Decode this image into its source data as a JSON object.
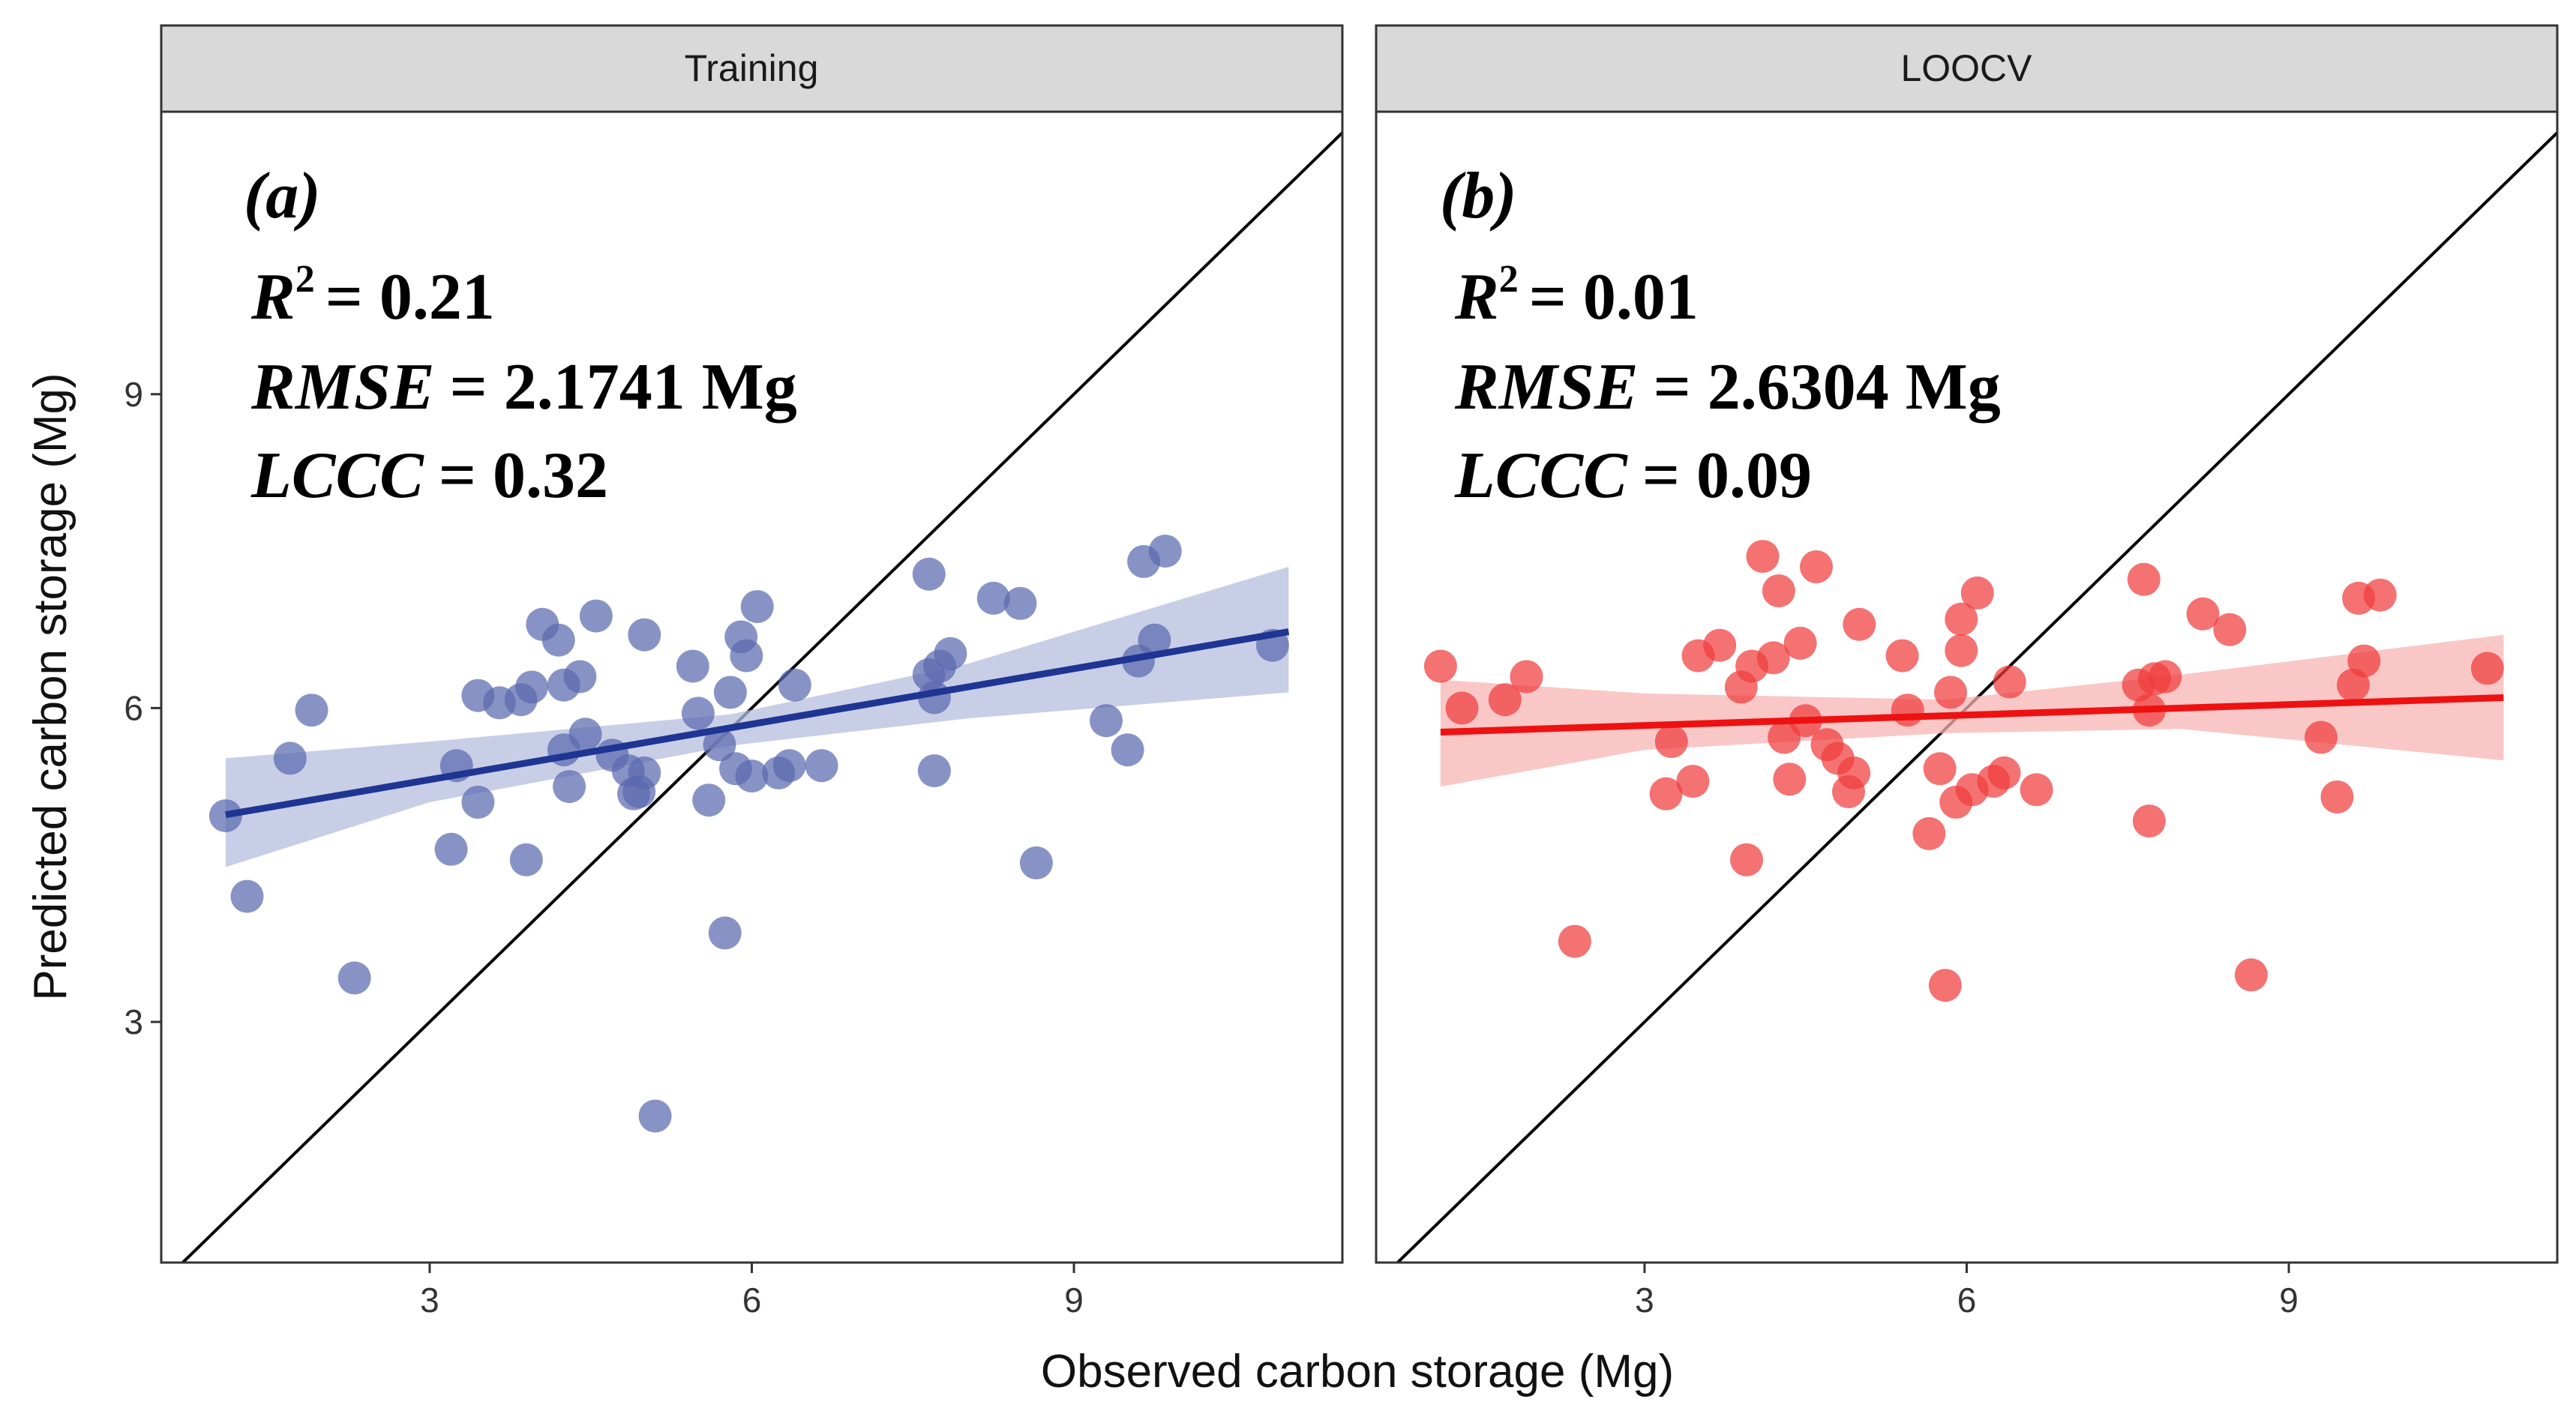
{
  "chart_data": {
    "type": "scatter",
    "xlabel": "Observed carbon storage (Mg)",
    "ylabel": "Predicted carbon storage (Mg)",
    "xlim": [
      0.5,
      11.5
    ],
    "ylim": [
      0.7,
      11.7
    ],
    "x_ticks": [
      3,
      6,
      9
    ],
    "y_ticks": [
      3,
      6,
      9
    ],
    "grid": false,
    "panels": [
      {
        "strip_label": "Training",
        "panel_label": "(a)",
        "stats": {
          "r2_name": "R",
          "r2_sup": "2",
          "r2_value": "= 0.21",
          "rmse_name": "RMSE",
          "rmse_value": "= 2.1741 Mg",
          "lccc_name": "LCCC",
          "lccc_value": "= 0.32"
        },
        "point_color": "#5a6aaf",
        "line_color": "#1f3594",
        "band_color": "#b7bedf",
        "regression": {
          "x_start": 1.1,
          "y_start": 4.98,
          "x_end": 11.0,
          "y_end": 6.73
        },
        "confidence_band": {
          "x": [
            1.1,
            3.0,
            5.8,
            8.0,
            11.0
          ],
          "lower": [
            4.48,
            5.1,
            5.64,
            5.9,
            6.15
          ],
          "upper": [
            5.52,
            5.68,
            5.94,
            6.42,
            7.35
          ]
        },
        "points": [
          {
            "x": 1.1,
            "y": 4.97
          },
          {
            "x": 1.3,
            "y": 4.2
          },
          {
            "x": 1.7,
            "y": 5.52
          },
          {
            "x": 1.9,
            "y": 5.98
          },
          {
            "x": 2.3,
            "y": 3.42
          },
          {
            "x": 3.2,
            "y": 4.65
          },
          {
            "x": 3.25,
            "y": 5.45
          },
          {
            "x": 3.45,
            "y": 5.1
          },
          {
            "x": 3.45,
            "y": 6.12
          },
          {
            "x": 3.65,
            "y": 6.05
          },
          {
            "x": 3.85,
            "y": 6.08
          },
          {
            "x": 3.9,
            "y": 4.55
          },
          {
            "x": 3.95,
            "y": 6.2
          },
          {
            "x": 4.05,
            "y": 6.8
          },
          {
            "x": 4.2,
            "y": 6.65
          },
          {
            "x": 4.25,
            "y": 6.22
          },
          {
            "x": 4.25,
            "y": 5.6
          },
          {
            "x": 4.3,
            "y": 5.25
          },
          {
            "x": 4.4,
            "y": 6.3
          },
          {
            "x": 4.45,
            "y": 5.75
          },
          {
            "x": 4.55,
            "y": 6.88
          },
          {
            "x": 4.7,
            "y": 5.55
          },
          {
            "x": 4.85,
            "y": 5.4
          },
          {
            "x": 4.9,
            "y": 5.18
          },
          {
            "x": 4.95,
            "y": 5.2
          },
          {
            "x": 5.0,
            "y": 6.7
          },
          {
            "x": 5.0,
            "y": 5.38
          },
          {
            "x": 5.1,
            "y": 2.1
          },
          {
            "x": 5.45,
            "y": 6.4
          },
          {
            "x": 5.5,
            "y": 5.95
          },
          {
            "x": 5.6,
            "y": 5.12
          },
          {
            "x": 5.7,
            "y": 5.65
          },
          {
            "x": 5.75,
            "y": 3.85
          },
          {
            "x": 5.8,
            "y": 6.15
          },
          {
            "x": 5.85,
            "y": 5.42
          },
          {
            "x": 5.9,
            "y": 6.68
          },
          {
            "x": 5.95,
            "y": 6.5
          },
          {
            "x": 6.0,
            "y": 5.35
          },
          {
            "x": 6.05,
            "y": 6.97
          },
          {
            "x": 6.25,
            "y": 5.38
          },
          {
            "x": 6.35,
            "y": 5.45
          },
          {
            "x": 6.4,
            "y": 6.22
          },
          {
            "x": 6.65,
            "y": 5.45
          },
          {
            "x": 7.65,
            "y": 7.28
          },
          {
            "x": 7.65,
            "y": 6.32
          },
          {
            "x": 7.7,
            "y": 5.4
          },
          {
            "x": 7.7,
            "y": 6.1
          },
          {
            "x": 7.75,
            "y": 6.4
          },
          {
            "x": 7.85,
            "y": 6.52
          },
          {
            "x": 8.25,
            "y": 7.05
          },
          {
            "x": 8.5,
            "y": 7.0
          },
          {
            "x": 8.65,
            "y": 4.52
          },
          {
            "x": 9.3,
            "y": 5.88
          },
          {
            "x": 9.5,
            "y": 5.6
          },
          {
            "x": 9.6,
            "y": 6.45
          },
          {
            "x": 9.65,
            "y": 7.4
          },
          {
            "x": 9.75,
            "y": 6.65
          },
          {
            "x": 9.85,
            "y": 7.5
          },
          {
            "x": 10.85,
            "y": 6.6
          }
        ]
      },
      {
        "strip_label": "LOOCV",
        "panel_label": "(b)",
        "stats": {
          "r2_name": "R",
          "r2_sup": "2",
          "r2_value": "= 0.01",
          "rmse_name": "RMSE",
          "rmse_value": "= 2.6304 Mg",
          "lccc_name": "LCCC",
          "lccc_value": "= 0.09"
        },
        "point_color": "#f03c3c",
        "line_color": "#ee1111",
        "band_color": "#f8b4b4",
        "regression": {
          "x_start": 1.1,
          "y_start": 5.77,
          "x_end": 11.0,
          "y_end": 6.1
        },
        "confidence_band": {
          "x": [
            1.1,
            3.0,
            5.8,
            8.0,
            11.0
          ],
          "lower": [
            5.25,
            5.6,
            5.76,
            5.8,
            5.5
          ],
          "upper": [
            6.27,
            6.14,
            6.08,
            6.32,
            6.7
          ]
        },
        "points": [
          {
            "x": 1.1,
            "y": 6.4
          },
          {
            "x": 1.3,
            "y": 6.0
          },
          {
            "x": 1.7,
            "y": 6.08
          },
          {
            "x": 1.9,
            "y": 6.3
          },
          {
            "x": 2.35,
            "y": 3.77
          },
          {
            "x": 3.2,
            "y": 5.18
          },
          {
            "x": 3.25,
            "y": 5.68
          },
          {
            "x": 3.45,
            "y": 5.3
          },
          {
            "x": 3.5,
            "y": 6.5
          },
          {
            "x": 3.7,
            "y": 6.6
          },
          {
            "x": 3.9,
            "y": 6.2
          },
          {
            "x": 3.95,
            "y": 4.55
          },
          {
            "x": 4.0,
            "y": 6.4
          },
          {
            "x": 4.1,
            "y": 7.45
          },
          {
            "x": 4.2,
            "y": 6.48
          },
          {
            "x": 4.25,
            "y": 7.12
          },
          {
            "x": 4.3,
            "y": 5.72
          },
          {
            "x": 4.35,
            "y": 5.32
          },
          {
            "x": 4.45,
            "y": 6.62
          },
          {
            "x": 4.5,
            "y": 5.88
          },
          {
            "x": 4.6,
            "y": 7.35
          },
          {
            "x": 4.7,
            "y": 5.65
          },
          {
            "x": 4.8,
            "y": 5.52
          },
          {
            "x": 4.9,
            "y": 5.2
          },
          {
            "x": 4.95,
            "y": 5.38
          },
          {
            "x": 5.0,
            "y": 6.8
          },
          {
            "x": 5.4,
            "y": 6.5
          },
          {
            "x": 5.45,
            "y": 5.98
          },
          {
            "x": 5.65,
            "y": 4.8
          },
          {
            "x": 5.75,
            "y": 5.42
          },
          {
            "x": 5.8,
            "y": 3.35
          },
          {
            "x": 5.85,
            "y": 6.15
          },
          {
            "x": 5.9,
            "y": 5.1
          },
          {
            "x": 5.95,
            "y": 6.85
          },
          {
            "x": 5.95,
            "y": 6.55
          },
          {
            "x": 6.05,
            "y": 5.22
          },
          {
            "x": 6.1,
            "y": 7.1
          },
          {
            "x": 6.25,
            "y": 5.3
          },
          {
            "x": 6.35,
            "y": 5.38
          },
          {
            "x": 6.4,
            "y": 6.25
          },
          {
            "x": 6.65,
            "y": 5.22
          },
          {
            "x": 7.65,
            "y": 7.23
          },
          {
            "x": 7.6,
            "y": 6.22
          },
          {
            "x": 7.7,
            "y": 4.92
          },
          {
            "x": 7.7,
            "y": 5.98
          },
          {
            "x": 7.75,
            "y": 6.28
          },
          {
            "x": 7.85,
            "y": 6.3
          },
          {
            "x": 8.2,
            "y": 6.9
          },
          {
            "x": 8.45,
            "y": 6.75
          },
          {
            "x": 8.65,
            "y": 3.45
          },
          {
            "x": 9.3,
            "y": 5.72
          },
          {
            "x": 9.45,
            "y": 5.15
          },
          {
            "x": 9.6,
            "y": 6.22
          },
          {
            "x": 9.65,
            "y": 7.05
          },
          {
            "x": 9.7,
            "y": 6.45
          },
          {
            "x": 9.85,
            "y": 7.08
          },
          {
            "x": 10.85,
            "y": 6.38
          }
        ]
      }
    ]
  }
}
